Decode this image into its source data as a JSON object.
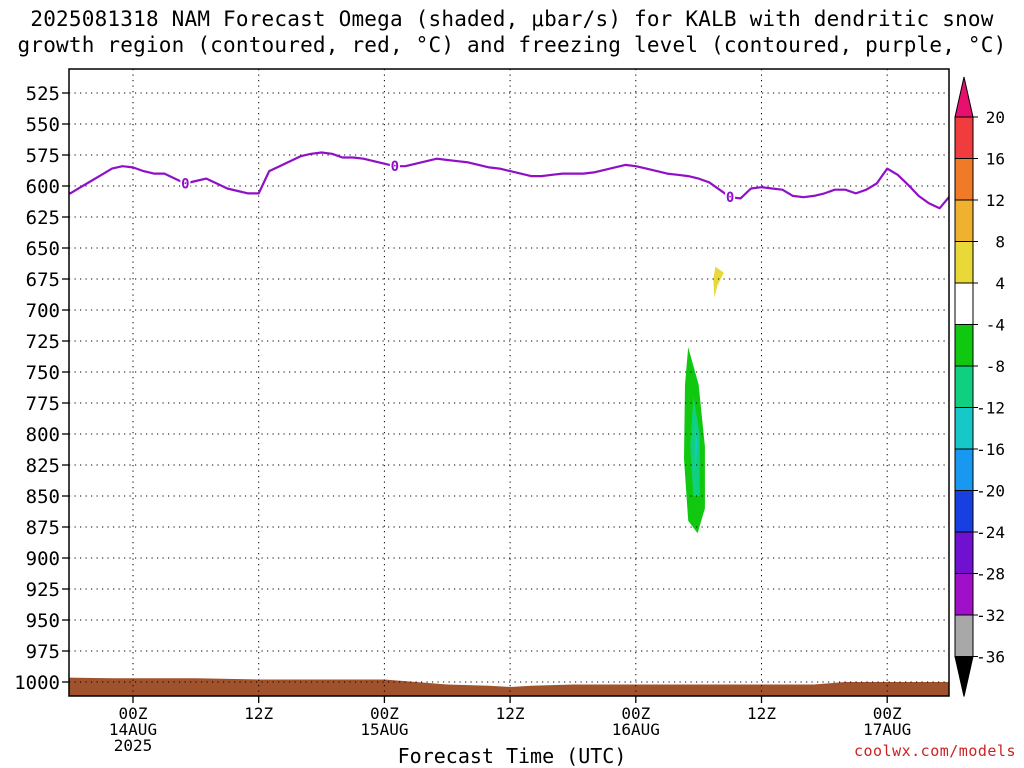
{
  "title_line1": "2025081318 NAM Forecast Omega (shaded, μbar/s) for KALB with dendritic snow",
  "title_line2": "growth region (contoured, red, °C) and freezing level (contoured, purple, °C)",
  "credit": "coolwx.com/models",
  "chart_data": {
    "type": "time-height cross section",
    "title": "2025081318 NAM Forecast Omega (shaded, μbar/s) for KALB with dendritic snow growth region (contoured, red, °C) and freezing level (contoured, purple, °C)",
    "xlabel": "Forecast Time (UTC)",
    "ylabel": "",
    "x_range_hours": [
      -4,
      66
    ],
    "y_range_hPa": [
      507,
      1012
    ],
    "y_ticks": [
      525,
      550,
      575,
      600,
      625,
      650,
      675,
      700,
      725,
      750,
      775,
      800,
      825,
      850,
      875,
      900,
      925,
      950,
      975,
      1000
    ],
    "x_ticks": [
      {
        "hour": 6,
        "lines": [
          "00Z",
          "14AUG",
          "2025"
        ]
      },
      {
        "hour": 18,
        "lines": [
          "12Z"
        ]
      },
      {
        "hour": 30,
        "lines": [
          "00Z",
          "15AUG"
        ]
      },
      {
        "hour": 42,
        "lines": [
          "12Z"
        ]
      },
      {
        "hour": 54,
        "lines": [
          "00Z",
          "16AUG"
        ]
      },
      {
        "hour": 66,
        "lines": [
          "12Z"
        ]
      },
      {
        "hour": 78,
        "lines": [
          "00Z",
          "17AUG"
        ]
      }
    ],
    "x_tick_hours": [
      6,
      18,
      30,
      42,
      54,
      66,
      78
    ],
    "x_hours_per_tick": 12,
    "grid": true,
    "colorbar": {
      "labels": [
        "20",
        "16",
        "12",
        "8",
        "4",
        "-4",
        "-8",
        "-12",
        "-16",
        "-20",
        "-24",
        "-28",
        "-32",
        "-36"
      ],
      "colors": [
        "#e8106e",
        "#f03c3c",
        "#f07a28",
        "#f0b030",
        "#e8d838",
        "#ffffff",
        "#10c810",
        "#10d080",
        "#18c8c8",
        "#1898f0",
        "#1840e0",
        "#7010d0",
        "#a010c8",
        "#a8a8a8"
      ]
    },
    "freezing_level_label": "0",
    "freezing_level_color": "#9010c8",
    "freezing_level": [
      [
        -4,
        600
      ],
      [
        -2,
        598
      ],
      [
        0,
        606
      ],
      [
        1,
        601
      ],
      [
        2,
        596
      ],
      [
        3,
        591
      ],
      [
        4,
        586
      ],
      [
        5,
        584
      ],
      [
        6,
        585
      ],
      [
        7,
        588
      ],
      [
        8,
        590
      ],
      [
        9,
        590
      ],
      [
        10,
        594
      ],
      [
        11,
        598
      ],
      [
        12,
        596
      ],
      [
        13,
        594
      ],
      [
        14,
        598
      ],
      [
        15,
        602
      ],
      [
        16,
        604
      ],
      [
        17,
        606
      ],
      [
        18,
        606
      ],
      [
        19,
        588
      ],
      [
        20,
        584
      ],
      [
        21,
        580
      ],
      [
        22,
        576
      ],
      [
        23,
        574
      ],
      [
        24,
        573
      ],
      [
        25,
        574
      ],
      [
        26,
        577
      ],
      [
        27,
        577
      ],
      [
        28,
        578
      ],
      [
        29,
        580
      ],
      [
        30,
        582
      ],
      [
        31,
        584
      ],
      [
        32,
        584
      ],
      [
        33,
        582
      ],
      [
        34,
        580
      ],
      [
        35,
        578
      ],
      [
        36,
        579
      ],
      [
        37,
        580
      ],
      [
        38,
        581
      ],
      [
        39,
        583
      ],
      [
        40,
        585
      ],
      [
        41,
        586
      ],
      [
        42,
        588
      ],
      [
        43,
        590
      ],
      [
        44,
        592
      ],
      [
        45,
        592
      ],
      [
        46,
        591
      ],
      [
        47,
        590
      ],
      [
        48,
        590
      ],
      [
        49,
        590
      ],
      [
        50,
        589
      ],
      [
        51,
        587
      ],
      [
        52,
        585
      ],
      [
        53,
        583
      ],
      [
        54,
        584
      ],
      [
        55,
        586
      ],
      [
        56,
        588
      ],
      [
        57,
        590
      ],
      [
        58,
        591
      ],
      [
        59,
        592
      ],
      [
        60,
        594
      ],
      [
        61,
        597
      ],
      [
        62,
        603
      ],
      [
        63,
        609
      ],
      [
        64,
        610
      ],
      [
        65,
        602
      ],
      [
        66,
        601
      ],
      [
        67,
        602
      ],
      [
        68,
        603
      ],
      [
        69,
        608
      ],
      [
        70,
        609
      ],
      [
        71,
        608
      ],
      [
        72,
        606
      ],
      [
        73,
        603
      ],
      [
        74,
        603
      ],
      [
        75,
        606
      ],
      [
        76,
        603
      ],
      [
        77,
        598
      ],
      [
        78,
        586
      ],
      [
        79,
        591
      ],
      [
        80,
        599
      ],
      [
        81,
        608
      ],
      [
        82,
        614
      ],
      [
        83,
        618
      ],
      [
        84,
        608
      ],
      [
        85,
        607
      ],
      [
        86,
        609
      ]
    ],
    "freezing_label_hours": [
      11,
      31,
      63
    ],
    "terrain_color": "#a0522d",
    "terrain": [
      [
        -4,
        996
      ],
      [
        4,
        997
      ],
      [
        12,
        997
      ],
      [
        18,
        998
      ],
      [
        24,
        998
      ],
      [
        30,
        998
      ],
      [
        36,
        1002
      ],
      [
        40,
        1003
      ],
      [
        42,
        1004
      ],
      [
        44,
        1003
      ],
      [
        48,
        1002
      ],
      [
        54,
        1002
      ],
      [
        60,
        1002
      ],
      [
        66,
        1002
      ],
      [
        71,
        1002
      ],
      [
        74,
        1000
      ],
      [
        80,
        1000
      ],
      [
        86,
        1000
      ]
    ],
    "omega_regions": [
      {
        "value": -8,
        "points": [
          [
            -4,
            503
          ],
          [
            -2,
            503
          ],
          [
            -2.5,
            600
          ],
          [
            -2.8,
            700
          ],
          [
            -3.5,
            760
          ],
          [
            -4,
            770
          ]
        ]
      },
      {
        "value": -20,
        "points": [
          [
            -4,
            503
          ],
          [
            -3,
            503
          ],
          [
            -3.3,
            600
          ],
          [
            -3.6,
            680
          ],
          [
            -4,
            700
          ]
        ]
      },
      {
        "value": -28,
        "points": [
          [
            -4,
            503
          ],
          [
            -3.5,
            503
          ],
          [
            -3.7,
            560
          ],
          [
            -4,
            610
          ]
        ]
      },
      {
        "value": 4,
        "points": [
          [
            -2.6,
            580
          ],
          [
            -1.8,
            620
          ],
          [
            -1.0,
            700
          ],
          [
            -0.6,
            800
          ],
          [
            -0.4,
            930
          ],
          [
            -1.2,
            985
          ],
          [
            -2.3,
            990
          ],
          [
            -3.3,
            975
          ],
          [
            -3.7,
            900
          ],
          [
            -3.6,
            780
          ],
          [
            -3.3,
            700
          ],
          [
            -2.9,
            620
          ]
        ]
      },
      {
        "value": 8,
        "points": [
          [
            -2.3,
            680
          ],
          [
            -1.5,
            720
          ],
          [
            -1.0,
            800
          ],
          [
            -0.8,
            930
          ],
          [
            -1.4,
            975
          ],
          [
            -2.3,
            978
          ],
          [
            -3.1,
            960
          ],
          [
            -3.4,
            900
          ],
          [
            -3.3,
            780
          ],
          [
            -2.9,
            720
          ]
        ]
      },
      {
        "value": 12,
        "points": [
          [
            -2.2,
            740
          ],
          [
            -1.4,
            780
          ],
          [
            -1.0,
            880
          ],
          [
            -1.1,
            950
          ],
          [
            -1.8,
            968
          ],
          [
            -2.6,
            960
          ],
          [
            -3.1,
            880
          ],
          [
            -3.0,
            790
          ]
        ]
      },
      {
        "value": 16,
        "points": [
          [
            -2.2,
            770
          ],
          [
            -1.7,
            800
          ],
          [
            -1.3,
            880
          ],
          [
            -1.5,
            945
          ],
          [
            -2.2,
            960
          ],
          [
            -2.8,
            940
          ],
          [
            -2.9,
            860
          ],
          [
            -2.7,
            800
          ]
        ]
      },
      {
        "value": 20,
        "points": [
          [
            -2.2,
            800
          ],
          [
            -1.6,
            850
          ],
          [
            -1.6,
            920
          ],
          [
            -2.2,
            950
          ],
          [
            -2.7,
            920
          ],
          [
            -2.6,
            840
          ]
        ]
      },
      {
        "value": 4,
        "points": [
          [
            -0.5,
            670
          ],
          [
            -0.1,
            690
          ],
          [
            -0.2,
            710
          ],
          [
            -0.4,
            730
          ],
          [
            -0.5,
            700
          ]
        ]
      },
      {
        "value": -4,
        "points": [
          [
            8,
            760
          ],
          [
            9,
            790
          ],
          [
            9.2,
            850
          ],
          [
            9,
            905
          ],
          [
            8.4,
            905
          ],
          [
            8.3,
            860
          ],
          [
            8,
            800
          ],
          [
            7.6,
            770
          ]
        ]
      },
      {
        "value": -4,
        "points": [
          [
            58.6,
            652
          ],
          [
            59.3,
            700
          ],
          [
            60.2,
            750
          ],
          [
            61.0,
            800
          ],
          [
            61.0,
            850
          ],
          [
            62,
            880
          ],
          [
            62.5,
            920
          ],
          [
            61.7,
            930
          ],
          [
            61.3,
            900
          ],
          [
            60,
            910
          ],
          [
            59.2,
            930
          ],
          [
            58.6,
            920
          ],
          [
            58.3,
            880
          ],
          [
            58.4,
            820
          ],
          [
            58.6,
            760
          ],
          [
            58.2,
            700
          ]
        ]
      },
      {
        "value": -8,
        "points": [
          [
            59,
            730
          ],
          [
            60,
            760
          ],
          [
            60.6,
            810
          ],
          [
            60.6,
            860
          ],
          [
            59.9,
            880
          ],
          [
            59,
            870
          ],
          [
            58.6,
            820
          ],
          [
            58.7,
            760
          ]
        ]
      },
      {
        "value": -12,
        "points": [
          [
            59.5,
            770
          ],
          [
            60.1,
            800
          ],
          [
            60.1,
            850
          ],
          [
            59.5,
            850
          ],
          [
            59.2,
            810
          ]
        ]
      },
      {
        "value": -16,
        "points": [
          [
            59.7,
            790
          ],
          [
            59.9,
            810
          ],
          [
            59.6,
            830
          ]
        ]
      },
      {
        "value": 4,
        "points": [
          [
            61.6,
            665
          ],
          [
            62.4,
            670
          ],
          [
            61.8,
            680
          ],
          [
            61.5,
            690
          ],
          [
            61.4,
            675
          ]
        ]
      },
      {
        "value": -4,
        "points": [
          [
            72.6,
            790
          ],
          [
            73.6,
            760
          ],
          [
            74.2,
            750
          ],
          [
            74.3,
            780
          ],
          [
            74.2,
            820
          ],
          [
            73.8,
            800
          ],
          [
            73.2,
            830
          ],
          [
            72.8,
            800
          ]
        ]
      },
      {
        "value": 4,
        "points": [
          [
            84.6,
            640
          ],
          [
            84.8,
            660
          ],
          [
            84.8,
            700
          ],
          [
            84.5,
            690
          ],
          [
            84.4,
            660
          ]
        ]
      }
    ]
  }
}
